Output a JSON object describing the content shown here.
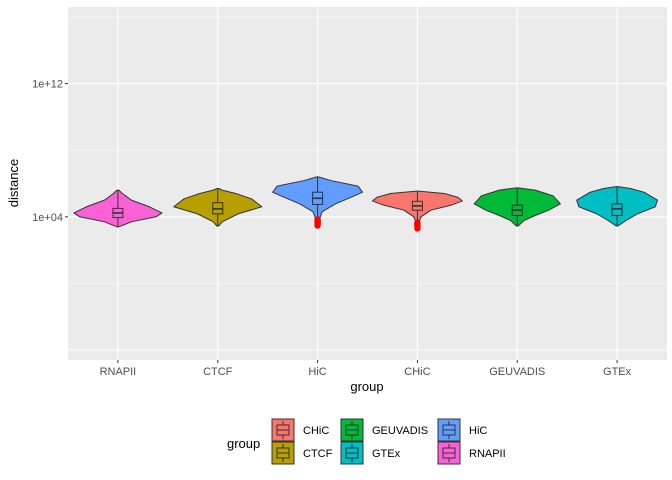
{
  "chart_data": {
    "type": "violin",
    "title": "",
    "xlabel": "group",
    "ylabel": "distance",
    "y_scale": "log10",
    "y_ticks": [
      "1e+04",
      "1e+12"
    ],
    "y_tick_values": [
      10000,
      1000000000000
    ],
    "ylim_log10": [
      -4.6,
      16.6
    ],
    "grid": true,
    "categories": [
      "RNAPII",
      "CTCF",
      "HiC",
      "CHiC",
      "GEUVADIS",
      "GTEx"
    ],
    "series": [
      {
        "category": "RNAPII",
        "color": "#FB61D7",
        "min": 2500,
        "q1": 9000,
        "median": 17000,
        "q3": 32000,
        "max": 400000,
        "shape": [
          [
            2500,
            0.02
          ],
          [
            5000,
            0.3
          ],
          [
            10000,
            0.85
          ],
          [
            17000,
            0.98
          ],
          [
            40000,
            0.7
          ],
          [
            100000,
            0.3
          ],
          [
            250000,
            0.1
          ],
          [
            400000,
            0.02
          ]
        ]
      },
      {
        "category": "CTCF",
        "color": "#B79F00",
        "min": 2800,
        "q1": 15000,
        "median": 30000,
        "q3": 70000,
        "max": 500000,
        "shape": [
          [
            2800,
            0.02
          ],
          [
            5000,
            0.1
          ],
          [
            15000,
            0.45
          ],
          [
            40000,
            0.98
          ],
          [
            120000,
            0.75
          ],
          [
            250000,
            0.4
          ],
          [
            400000,
            0.1
          ],
          [
            500000,
            0.02
          ]
        ]
      },
      {
        "category": "HiC",
        "color": "#619CFF",
        "min": 5000,
        "q1": 55000,
        "median": 130000,
        "q3": 300000,
        "max": 2500000,
        "outliers": [
          3000,
          3600,
          4200,
          4800,
          5500,
          6200,
          6800
        ],
        "shape": [
          [
            5000,
            0.02
          ],
          [
            20000,
            0.1
          ],
          [
            60000,
            0.4
          ],
          [
            150000,
            0.75
          ],
          [
            300000,
            1.0
          ],
          [
            700000,
            0.9
          ],
          [
            1500000,
            0.3
          ],
          [
            2500000,
            0.02
          ]
        ]
      },
      {
        "category": "CHiC",
        "color": "#F8766D",
        "min": 4000,
        "q1": 25000,
        "median": 45000,
        "q3": 85000,
        "max": 350000,
        "outliers": [
          2000,
          2600,
          3200,
          3800,
          4400
        ],
        "shape": [
          [
            3200,
            0.01
          ],
          [
            10000,
            0.08
          ],
          [
            25000,
            0.3
          ],
          [
            50000,
            0.75
          ],
          [
            90000,
            1.0
          ],
          [
            150000,
            0.9
          ],
          [
            250000,
            0.6
          ],
          [
            350000,
            0.02
          ]
        ]
      },
      {
        "category": "GEUVADIS",
        "color": "#00BA38",
        "min": 2800,
        "q1": 12000,
        "median": 25000,
        "q3": 50000,
        "max": 550000,
        "shape": [
          [
            2800,
            0.02
          ],
          [
            6000,
            0.15
          ],
          [
            12000,
            0.4
          ],
          [
            25000,
            0.7
          ],
          [
            60000,
            0.96
          ],
          [
            180000,
            0.8
          ],
          [
            400000,
            0.4
          ],
          [
            550000,
            0.02
          ]
        ]
      },
      {
        "category": "GTEx",
        "color": "#00BFC4",
        "min": 2800,
        "q1": 12000,
        "median": 30000,
        "q3": 60000,
        "max": 650000,
        "shape": [
          [
            2800,
            0.02
          ],
          [
            6000,
            0.2
          ],
          [
            15000,
            0.45
          ],
          [
            40000,
            0.85
          ],
          [
            100000,
            0.9
          ],
          [
            300000,
            0.6
          ],
          [
            500000,
            0.3
          ],
          [
            650000,
            0.02
          ]
        ]
      }
    ],
    "outlier_color": "#FF0000",
    "legend": {
      "title": "group",
      "position": "bottom",
      "items": [
        {
          "label": "CHiC",
          "color": "#F8766D"
        },
        {
          "label": "CTCF",
          "color": "#B79F00"
        },
        {
          "label": "GEUVADIS",
          "color": "#00BA38"
        },
        {
          "label": "GTEx",
          "color": "#00BFC4"
        },
        {
          "label": "HiC",
          "color": "#619CFF"
        },
        {
          "label": "RNAPII",
          "color": "#FB61D7"
        }
      ]
    }
  }
}
